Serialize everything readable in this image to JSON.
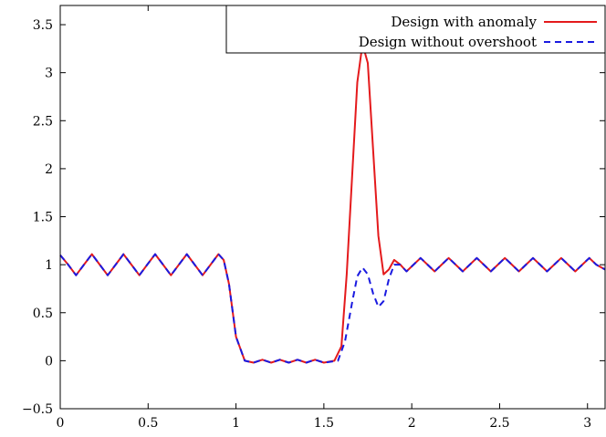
{
  "chart_data": {
    "type": "line",
    "title": "",
    "xlabel": "",
    "ylabel": "",
    "xlim": [
      0,
      3.1
    ],
    "ylim": [
      -0.5,
      3.7
    ],
    "x_ticks": [
      0,
      0.5,
      1,
      1.5,
      2,
      2.5,
      3
    ],
    "x_tick_labels": [
      "0",
      "0.5",
      "1",
      "1.5",
      "2",
      "2.5",
      "3"
    ],
    "y_ticks": [
      -0.5,
      0,
      0.5,
      1,
      1.5,
      2,
      2.5,
      3,
      3.5
    ],
    "y_tick_labels": [
      "−0.5",
      "0",
      "0.5",
      "1",
      "1.5",
      "2",
      "2.5",
      "3",
      "3.5"
    ],
    "grid": false,
    "legend_position": "top-right",
    "series": [
      {
        "name": "Design with anomaly",
        "color": "#e41a1c",
        "dash": "solid",
        "points": [
          [
            0.0,
            1.1
          ],
          [
            0.045,
            1.0
          ],
          [
            0.09,
            0.89
          ],
          [
            0.135,
            1.0
          ],
          [
            0.18,
            1.11
          ],
          [
            0.225,
            1.0
          ],
          [
            0.27,
            0.89
          ],
          [
            0.315,
            1.0
          ],
          [
            0.36,
            1.11
          ],
          [
            0.405,
            1.0
          ],
          [
            0.45,
            0.89
          ],
          [
            0.495,
            1.0
          ],
          [
            0.54,
            1.11
          ],
          [
            0.585,
            1.0
          ],
          [
            0.63,
            0.89
          ],
          [
            0.675,
            1.0
          ],
          [
            0.72,
            1.11
          ],
          [
            0.765,
            1.0
          ],
          [
            0.81,
            0.89
          ],
          [
            0.855,
            1.0
          ],
          [
            0.9,
            1.11
          ],
          [
            0.93,
            1.05
          ],
          [
            0.96,
            0.8
          ],
          [
            1.0,
            0.25
          ],
          [
            1.05,
            0.0
          ],
          [
            1.1,
            -0.02
          ],
          [
            1.15,
            0.01
          ],
          [
            1.2,
            -0.02
          ],
          [
            1.25,
            0.01
          ],
          [
            1.3,
            -0.02
          ],
          [
            1.35,
            0.01
          ],
          [
            1.4,
            -0.02
          ],
          [
            1.45,
            0.01
          ],
          [
            1.5,
            -0.02
          ],
          [
            1.56,
            0.0
          ],
          [
            1.6,
            0.15
          ],
          [
            1.63,
            0.9
          ],
          [
            1.66,
            1.9
          ],
          [
            1.69,
            2.9
          ],
          [
            1.72,
            3.3
          ],
          [
            1.75,
            3.1
          ],
          [
            1.78,
            2.2
          ],
          [
            1.81,
            1.3
          ],
          [
            1.84,
            0.9
          ],
          [
            1.87,
            0.95
          ],
          [
            1.9,
            1.05
          ],
          [
            1.935,
            1.0
          ],
          [
            1.97,
            0.93
          ],
          [
            2.01,
            1.0
          ],
          [
            2.05,
            1.07
          ],
          [
            2.09,
            1.0
          ],
          [
            2.13,
            0.93
          ],
          [
            2.17,
            1.0
          ],
          [
            2.21,
            1.07
          ],
          [
            2.25,
            1.0
          ],
          [
            2.29,
            0.93
          ],
          [
            2.33,
            1.0
          ],
          [
            2.37,
            1.07
          ],
          [
            2.41,
            1.0
          ],
          [
            2.45,
            0.93
          ],
          [
            2.49,
            1.0
          ],
          [
            2.53,
            1.07
          ],
          [
            2.57,
            1.0
          ],
          [
            2.61,
            0.93
          ],
          [
            2.65,
            1.0
          ],
          [
            2.69,
            1.07
          ],
          [
            2.73,
            1.0
          ],
          [
            2.77,
            0.93
          ],
          [
            2.81,
            1.0
          ],
          [
            2.85,
            1.07
          ],
          [
            2.89,
            1.0
          ],
          [
            2.93,
            0.93
          ],
          [
            2.97,
            1.0
          ],
          [
            3.01,
            1.07
          ],
          [
            3.05,
            1.0
          ],
          [
            3.1,
            0.95
          ]
        ]
      },
      {
        "name": "Design without overshoot",
        "color": "#1a1ae0",
        "dash": "dashed",
        "points": [
          [
            0.0,
            1.1
          ],
          [
            0.045,
            1.0
          ],
          [
            0.09,
            0.89
          ],
          [
            0.135,
            1.0
          ],
          [
            0.18,
            1.11
          ],
          [
            0.225,
            1.0
          ],
          [
            0.27,
            0.89
          ],
          [
            0.315,
            1.0
          ],
          [
            0.36,
            1.11
          ],
          [
            0.405,
            1.0
          ],
          [
            0.45,
            0.89
          ],
          [
            0.495,
            1.0
          ],
          [
            0.54,
            1.11
          ],
          [
            0.585,
            1.0
          ],
          [
            0.63,
            0.89
          ],
          [
            0.675,
            1.0
          ],
          [
            0.72,
            1.11
          ],
          [
            0.765,
            1.0
          ],
          [
            0.81,
            0.89
          ],
          [
            0.855,
            1.0
          ],
          [
            0.9,
            1.11
          ],
          [
            0.93,
            1.05
          ],
          [
            0.96,
            0.8
          ],
          [
            1.0,
            0.25
          ],
          [
            1.05,
            0.0
          ],
          [
            1.1,
            -0.02
          ],
          [
            1.15,
            0.01
          ],
          [
            1.2,
            -0.02
          ],
          [
            1.25,
            0.01
          ],
          [
            1.3,
            -0.02
          ],
          [
            1.35,
            0.01
          ],
          [
            1.4,
            -0.02
          ],
          [
            1.45,
            0.01
          ],
          [
            1.5,
            -0.02
          ],
          [
            1.58,
            0.0
          ],
          [
            1.62,
            0.2
          ],
          [
            1.66,
            0.6
          ],
          [
            1.69,
            0.88
          ],
          [
            1.72,
            0.97
          ],
          [
            1.75,
            0.9
          ],
          [
            1.78,
            0.7
          ],
          [
            1.81,
            0.56
          ],
          [
            1.84,
            0.62
          ],
          [
            1.87,
            0.85
          ],
          [
            1.9,
            1.0
          ],
          [
            1.935,
            1.0
          ],
          [
            1.97,
            0.93
          ],
          [
            2.01,
            1.0
          ],
          [
            2.05,
            1.07
          ],
          [
            2.09,
            1.0
          ],
          [
            2.13,
            0.93
          ],
          [
            2.17,
            1.0
          ],
          [
            2.21,
            1.07
          ],
          [
            2.25,
            1.0
          ],
          [
            2.29,
            0.93
          ],
          [
            2.33,
            1.0
          ],
          [
            2.37,
            1.07
          ],
          [
            2.41,
            1.0
          ],
          [
            2.45,
            0.93
          ],
          [
            2.49,
            1.0
          ],
          [
            2.53,
            1.07
          ],
          [
            2.57,
            1.0
          ],
          [
            2.61,
            0.93
          ],
          [
            2.65,
            1.0
          ],
          [
            2.69,
            1.07
          ],
          [
            2.73,
            1.0
          ],
          [
            2.77,
            0.93
          ],
          [
            2.81,
            1.0
          ],
          [
            2.85,
            1.07
          ],
          [
            2.89,
            1.0
          ],
          [
            2.93,
            0.93
          ],
          [
            2.97,
            1.0
          ],
          [
            3.01,
            1.07
          ],
          [
            3.05,
            1.0
          ],
          [
            3.1,
            0.95
          ]
        ]
      }
    ]
  }
}
